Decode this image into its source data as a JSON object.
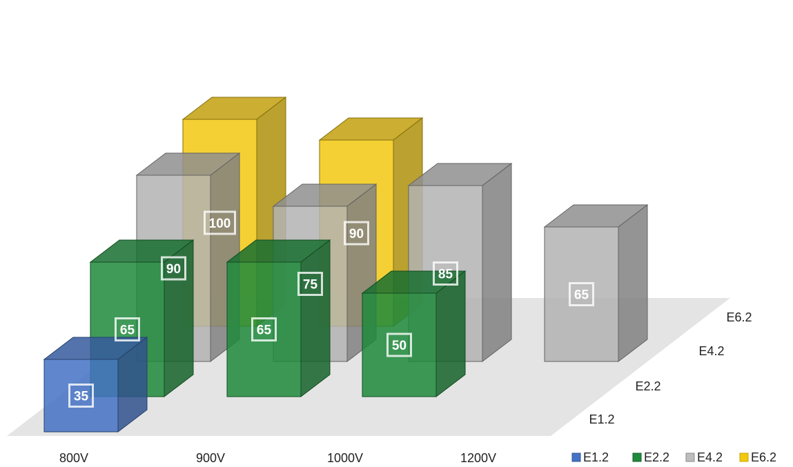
{
  "chart_data": {
    "type": "bar",
    "title": "",
    "categories": [
      "800V",
      "900V",
      "1000V",
      "1200V"
    ],
    "series": [
      {
        "name": "E1.2",
        "color": "#4472c4",
        "values": [
          35,
          null,
          null,
          null
        ]
      },
      {
        "name": "E2.2",
        "color": "#1e8a3c",
        "values": [
          65,
          65,
          50,
          null
        ]
      },
      {
        "name": "E4.2",
        "color": "#a5a5a5",
        "values": [
          90,
          75,
          85,
          65
        ]
      },
      {
        "name": "E6.2",
        "color": "#f2c811",
        "values": [
          100,
          90,
          null,
          null
        ]
      }
    ],
    "depth_labels": [
      "E1.2",
      "E2.2",
      "E4.2",
      "E6.2"
    ],
    "legend_position": "bottom-right",
    "grid": false,
    "ylim": [
      0,
      100
    ]
  }
}
